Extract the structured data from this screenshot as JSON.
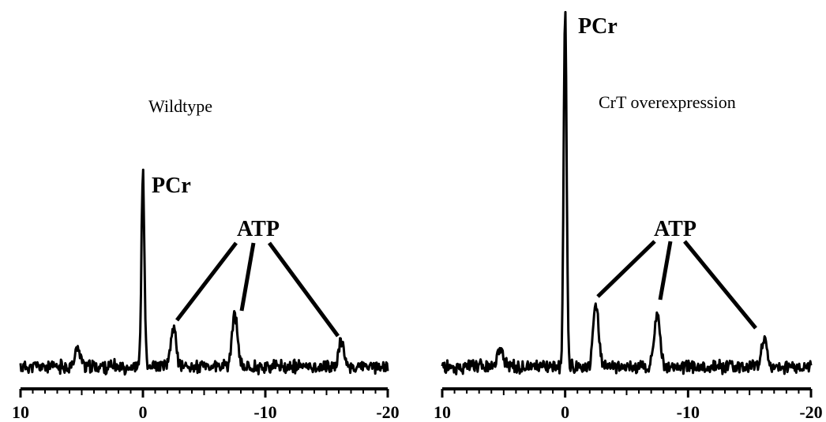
{
  "chart_data": [
    {
      "type": "line",
      "panel": "left",
      "title": "Wildtype",
      "xlim": [
        10,
        -20
      ],
      "x_ticks": [
        10,
        0,
        -10,
        -20
      ],
      "tick_labels": [
        "10",
        "0",
        "-10",
        "-20"
      ],
      "grid": false,
      "peaks": [
        {
          "label": "PCr",
          "x": 0,
          "height": 1.0
        },
        {
          "label": "ATP",
          "x": -2.5,
          "height": 0.2
        },
        {
          "label": "ATP",
          "x": -7.5,
          "height": 0.27
        },
        {
          "label": "ATP",
          "x": -16.2,
          "height": 0.13
        },
        {
          "label": "",
          "x": 5.3,
          "height": 0.1
        }
      ],
      "annotations": {
        "pcr": "PCr",
        "atp": "ATP"
      }
    },
    {
      "type": "line",
      "panel": "right",
      "title": "CrT overexpression",
      "xlim": [
        10,
        -20
      ],
      "x_ticks": [
        10,
        0,
        -10,
        -20
      ],
      "tick_labels": [
        "10",
        "0",
        "-10",
        "-20"
      ],
      "grid": false,
      "peaks": [
        {
          "label": "PCr",
          "x": 0,
          "height": 2.0
        },
        {
          "label": "ATP",
          "x": -2.5,
          "height": 0.34
        },
        {
          "label": "ATP",
          "x": -7.5,
          "height": 0.3
        },
        {
          "label": "ATP",
          "x": -16.2,
          "height": 0.16
        },
        {
          "label": "",
          "x": 5.3,
          "height": 0.11
        }
      ],
      "annotations": {
        "pcr": "PCr",
        "atp": "ATP"
      }
    }
  ]
}
